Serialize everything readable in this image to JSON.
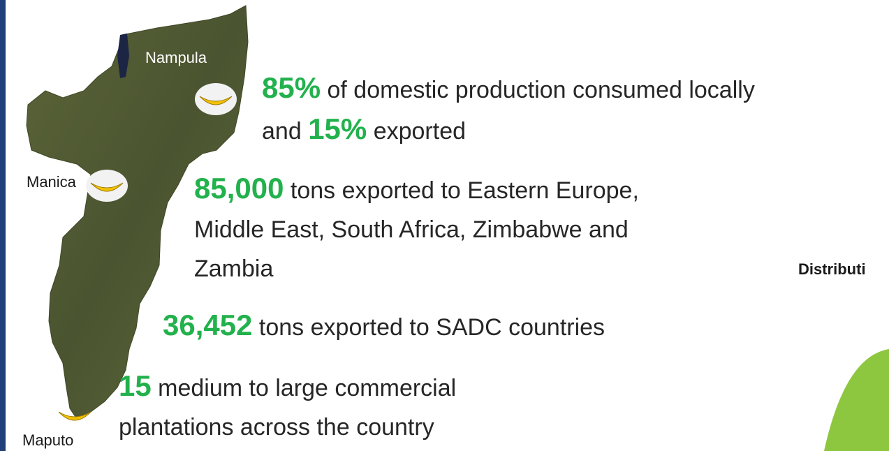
{
  "map": {
    "cities": [
      {
        "name": "Nampula"
      },
      {
        "name": "Manica"
      },
      {
        "name": "Maputo"
      }
    ],
    "icon": "banana-icon"
  },
  "stats": [
    {
      "num1": "85%",
      "text1": " of domestic production consumed locally",
      "text2": "and ",
      "num2": "15%",
      "text3": " exported"
    },
    {
      "num": "85,000",
      "line1": " tons exported to Eastern Europe,",
      "line2": "Middle East, South Africa, Zimbabwe and",
      "line3": "Zambia"
    },
    {
      "num": "36,452",
      "text": " tons exported to SADC countries"
    },
    {
      "num": "15",
      "line1": " medium to large commercial",
      "line2": "plantations across the country"
    }
  ],
  "side": {
    "label": "Distributi"
  },
  "colors": {
    "accent": "#22b14c",
    "map": "#4f5a30",
    "pie": "#8dc63f",
    "bar": "#1f3f7a"
  }
}
